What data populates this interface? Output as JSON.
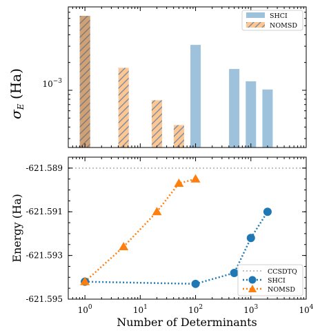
{
  "chart_data": [
    {
      "type": "bar",
      "ylabel": "σ_E (Ha)",
      "xscale": "log",
      "yscale": "log",
      "xlim": [
        0.5,
        10000
      ],
      "ylim": [
        0.00024,
        0.008
      ],
      "ytick_labels": [
        "10^{-3}"
      ],
      "ytick_label_text": {
        "base": "10",
        "exp": "−3"
      },
      "legend": {
        "placement": "top-right",
        "entries": [
          "SHCI",
          "NOMSD"
        ]
      },
      "series": [
        {
          "name": "SHCI",
          "color": "#9ec2dc",
          "points": [
            {
              "x": 1,
              "y": 0.0064
            },
            {
              "x": 100,
              "y": 0.00029
            }
          ]
        },
        {
          "name": "SHCI",
          "color": "#9ec2dc",
          "legend": false,
          "points": [
            {
              "x": 100,
              "y": 0.0031
            },
            {
              "x": 500,
              "y": 0.0017
            },
            {
              "x": 1000,
              "y": 0.00125
            },
            {
              "x": 2000,
              "y": 0.00102
            }
          ]
        },
        {
          "name": "NOMSD",
          "color": "#fdc793",
          "hatch": "#7a8aa0",
          "points": [
            {
              "x": 1,
              "y": 0.0064
            },
            {
              "x": 5,
              "y": 0.00175
            },
            {
              "x": 20,
              "y": 0.00078
            },
            {
              "x": 50,
              "y": 0.00042
            }
          ]
        }
      ]
    },
    {
      "type": "line",
      "xlabel": "Number of Determinants",
      "ylabel": "Energy (Ha)",
      "xscale": "log",
      "xlim": [
        0.5,
        10000
      ],
      "ylim": [
        -621.595,
        -621.5885
      ],
      "xtick_labels": [
        {
          "value": 1,
          "base": "10",
          "exp": "0"
        },
        {
          "value": 10,
          "base": "10",
          "exp": "1"
        },
        {
          "value": 100,
          "base": "10",
          "exp": "2"
        },
        {
          "value": 1000,
          "base": "10",
          "exp": "3"
        },
        {
          "value": 10000,
          "base": "10",
          "exp": "4"
        }
      ],
      "ytick_labels": [
        {
          "value": -621.589,
          "label": "-621.589"
        },
        {
          "value": -621.591,
          "label": "-621.591"
        },
        {
          "value": -621.593,
          "label": "-621.593"
        },
        {
          "value": -621.595,
          "label": "-621.595"
        }
      ],
      "legend": {
        "placement": "bottom-right",
        "entries": [
          "CCSDTQ",
          "SHCI",
          "NOMSD"
        ]
      },
      "reference": {
        "name": "CCSDTQ",
        "y": -621.589,
        "color": "#bfbfbf"
      },
      "series": [
        {
          "name": "SHCI",
          "color": "#1f77b4",
          "marker": "circle",
          "x": [
            1,
            100,
            500,
            1000,
            2000
          ],
          "y": [
            -621.5942,
            -621.5943,
            -621.5938,
            -621.5922,
            -621.591
          ]
        },
        {
          "name": "NOMSD",
          "color": "#ff7f0e",
          "marker": "triangle",
          "x": [
            1,
            5,
            20,
            50,
            100
          ],
          "y": [
            -621.5942,
            -621.5926,
            -621.591,
            -621.5897,
            -621.5895
          ]
        }
      ]
    }
  ]
}
